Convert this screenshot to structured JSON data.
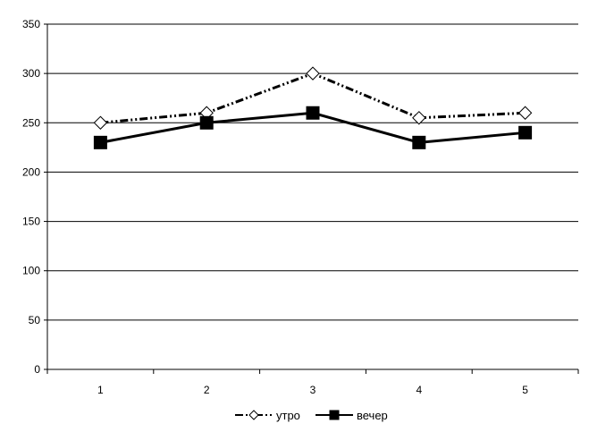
{
  "chart_data": {
    "type": "line",
    "categories": [
      "1",
      "2",
      "3",
      "4",
      "5"
    ],
    "series": [
      {
        "name": "утро",
        "values": [
          250,
          260,
          300,
          255,
          260
        ],
        "color": "#000000",
        "line_style": "dash-dot-dot",
        "marker": "open-diamond"
      },
      {
        "name": "вечер",
        "values": [
          230,
          250,
          260,
          230,
          240
        ],
        "color": "#000000",
        "line_style": "solid",
        "marker": "filled-square"
      }
    ],
    "y_ticks": [
      "0",
      "50",
      "100",
      "150",
      "200",
      "250",
      "300",
      "350"
    ],
    "ylim": [
      0,
      350
    ],
    "grid": "horizontal",
    "legend_position": "bottom-center"
  }
}
